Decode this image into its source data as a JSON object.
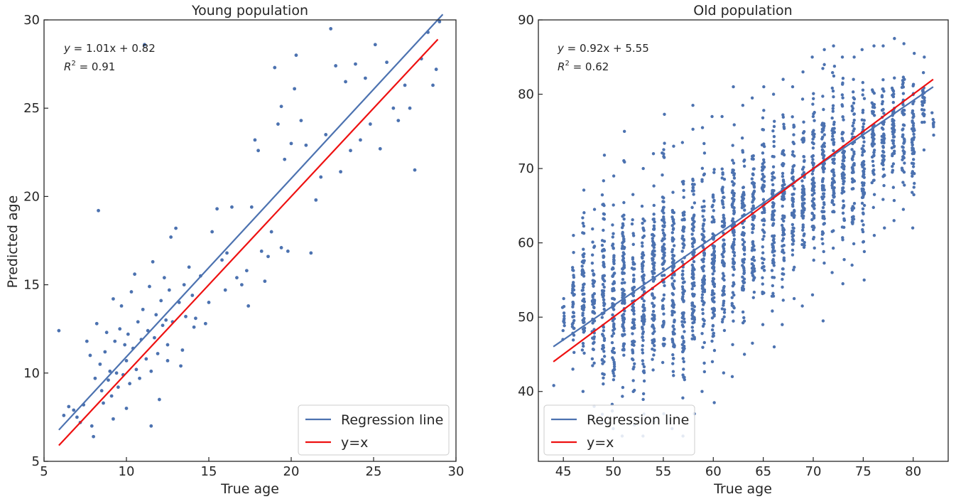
{
  "colors": {
    "scatter": "#4C72B0",
    "regression": "#4C72B0",
    "identity": "#EE1111",
    "frame": "#262626"
  },
  "ylabel": "Predicted age",
  "chart_data": [
    {
      "type": "scatter",
      "title": "Young population",
      "xlabel": "True age",
      "ylabel": "Predicted age",
      "xlim": [
        5,
        30
      ],
      "ylim": [
        5,
        30
      ],
      "xticks": [
        "5",
        "10",
        "15",
        "20",
        "25",
        "30"
      ],
      "yticks": [
        "5",
        "10",
        "15",
        "20",
        "25",
        "30"
      ],
      "annotation": {
        "eq_lhs": "y",
        "eq_rhs": " = 1.01x + 0.82",
        "r2_lhs": "R",
        "r2_sup": "2",
        "r2_rhs": " = 0.91"
      },
      "regression": {
        "slope": 1.01,
        "intercept": 0.82,
        "x": [
          5.9,
          29.2
        ]
      },
      "identity": {
        "x": [
          5.9,
          28.9
        ]
      },
      "legend": {
        "placement": "lower-right",
        "entries": [
          "Regression line",
          "y=x"
        ]
      },
      "points": [
        [
          5.9,
          12.4
        ],
        [
          6.2,
          7.6
        ],
        [
          6.5,
          8.1
        ],
        [
          6.8,
          7.9
        ],
        [
          7.0,
          7.5
        ],
        [
          7.2,
          7.2
        ],
        [
          7.4,
          8.2
        ],
        [
          7.6,
          11.8
        ],
        [
          7.8,
          11.0
        ],
        [
          7.9,
          7.0
        ],
        [
          8.0,
          6.4
        ],
        [
          8.1,
          9.7
        ],
        [
          8.2,
          12.8
        ],
        [
          8.3,
          19.2
        ],
        [
          8.4,
          10.5
        ],
        [
          8.5,
          9.0
        ],
        [
          8.6,
          8.3
        ],
        [
          8.7,
          11.2
        ],
        [
          8.8,
          12.3
        ],
        [
          8.9,
          9.6
        ],
        [
          9.0,
          10.1
        ],
        [
          9.1,
          8.7
        ],
        [
          9.2,
          14.2
        ],
        [
          9.3,
          11.8
        ],
        [
          9.4,
          10.0
        ],
        [
          9.5,
          9.2
        ],
        [
          9.6,
          12.5
        ],
        [
          9.7,
          13.8
        ],
        [
          9.8,
          9.9
        ],
        [
          9.9,
          11.6
        ],
        [
          10.0,
          10.7
        ],
        [
          10.1,
          12.2
        ],
        [
          10.2,
          9.4
        ],
        [
          10.3,
          14.6
        ],
        [
          10.4,
          11.4
        ],
        [
          10.5,
          15.6
        ],
        [
          10.6,
          10.2
        ],
        [
          10.7,
          12.9
        ],
        [
          10.8,
          9.7
        ],
        [
          10.9,
          11.9
        ],
        [
          11.0,
          13.6
        ],
        [
          11.1,
          28.6
        ],
        [
          11.2,
          10.8
        ],
        [
          11.3,
          12.4
        ],
        [
          11.4,
          14.9
        ],
        [
          11.5,
          10.1
        ],
        [
          11.6,
          16.3
        ],
        [
          11.7,
          12.0
        ],
        [
          11.8,
          13.3
        ],
        [
          11.9,
          11.1
        ],
        [
          12.0,
          8.5
        ],
        [
          12.1,
          14.1
        ],
        [
          12.2,
          12.7
        ],
        [
          12.3,
          15.4
        ],
        [
          12.4,
          13.0
        ],
        [
          12.5,
          11.6
        ],
        [
          12.6,
          14.7
        ],
        [
          12.7,
          17.7
        ],
        [
          12.8,
          12.9
        ],
        [
          13.0,
          18.2
        ],
        [
          13.2,
          14.0
        ],
        [
          13.3,
          10.4
        ],
        [
          13.5,
          15.0
        ],
        [
          13.6,
          13.2
        ],
        [
          13.8,
          16.0
        ],
        [
          14.0,
          14.4
        ],
        [
          14.2,
          13.1
        ],
        [
          14.5,
          15.5
        ],
        [
          14.8,
          12.8
        ],
        [
          15.0,
          14.0
        ],
        [
          15.2,
          18.0
        ],
        [
          15.5,
          19.3
        ],
        [
          15.8,
          16.4
        ],
        [
          16.1,
          16.8
        ],
        [
          16.4,
          19.4
        ],
        [
          16.7,
          15.4
        ],
        [
          17.0,
          15.0
        ],
        [
          17.3,
          15.8
        ],
        [
          17.6,
          19.4
        ],
        [
          17.8,
          23.2
        ],
        [
          18.0,
          22.6
        ],
        [
          18.2,
          16.9
        ],
        [
          18.4,
          15.2
        ],
        [
          18.6,
          16.6
        ],
        [
          18.8,
          18.0
        ],
        [
          19.0,
          27.3
        ],
        [
          19.2,
          24.1
        ],
        [
          19.4,
          17.1
        ],
        [
          19.6,
          22.1
        ],
        [
          19.8,
          16.9
        ],
        [
          20.0,
          23.0
        ],
        [
          20.3,
          28.0
        ],
        [
          20.6,
          24.3
        ],
        [
          20.9,
          22.9
        ],
        [
          21.2,
          16.8
        ],
        [
          21.5,
          19.8
        ],
        [
          21.8,
          21.1
        ],
        [
          22.1,
          23.5
        ],
        [
          22.4,
          29.5
        ],
        [
          22.7,
          27.4
        ],
        [
          23.0,
          21.4
        ],
        [
          23.3,
          26.5
        ],
        [
          23.6,
          22.6
        ],
        [
          23.9,
          27.5
        ],
        [
          24.2,
          23.2
        ],
        [
          24.5,
          26.7
        ],
        [
          24.8,
          24.1
        ],
        [
          25.1,
          28.6
        ],
        [
          25.4,
          22.7
        ],
        [
          25.8,
          27.6
        ],
        [
          26.2,
          25.0
        ],
        [
          26.5,
          24.3
        ],
        [
          26.9,
          26.3
        ],
        [
          27.2,
          25.0
        ],
        [
          27.5,
          21.5
        ],
        [
          27.9,
          27.8
        ],
        [
          28.3,
          29.3
        ],
        [
          28.6,
          26.3
        ],
        [
          28.8,
          27.2
        ],
        [
          29.0,
          29.9
        ],
        [
          11.5,
          7.0
        ],
        [
          10.0,
          8.0
        ],
        [
          9.2,
          7.4
        ],
        [
          12.5,
          10.7
        ],
        [
          13.4,
          11.3
        ],
        [
          14.1,
          12.6
        ],
        [
          16.0,
          14.7
        ],
        [
          17.4,
          13.8
        ],
        [
          20.2,
          26.1
        ],
        [
          19.4,
          25.1
        ]
      ]
    },
    {
      "type": "scatter",
      "title": "Old population",
      "xlabel": "True age",
      "xlim": [
        42.5,
        83.5
      ],
      "ylim": [
        30.6,
        90
      ],
      "xticks": [
        "45",
        "50",
        "55",
        "60",
        "65",
        "70",
        "75",
        "80"
      ],
      "yticks": [
        "40",
        "50",
        "60",
        "70",
        "80",
        "90"
      ],
      "annotation": {
        "eq_lhs": "y",
        "eq_rhs": " = 0.92x + 5.55",
        "r2_lhs": "R",
        "r2_sup": "2",
        "r2_rhs": " = 0.62"
      },
      "regression": {
        "slope": 0.92,
        "intercept": 5.55,
        "x": [
          44,
          82
        ]
      },
      "identity": {
        "x": [
          44,
          82
        ]
      },
      "legend": {
        "placement": "lower-left",
        "entries": [
          "Regression line",
          "y=x"
        ]
      },
      "columns": [
        {
          "x": 44,
          "min": 40.8,
          "max": 40.8
        },
        {
          "x": 45,
          "min": 47.0,
          "max": 52.5
        },
        {
          "x": 46,
          "min": 43.0,
          "max": 61.0
        },
        {
          "x": 47,
          "min": 40.0,
          "max": 67.1
        },
        {
          "x": 48,
          "min": 38.0,
          "max": 64.5
        },
        {
          "x": 49,
          "min": 36.0,
          "max": 71.8
        },
        {
          "x": 50,
          "min": 35.0,
          "max": 69.0
        },
        {
          "x": 51,
          "min": 34.0,
          "max": 75.0
        },
        {
          "x": 52,
          "min": 35.5,
          "max": 66.5
        },
        {
          "x": 53,
          "min": 34.0,
          "max": 70.0
        },
        {
          "x": 54,
          "min": 36.0,
          "max": 72.0
        },
        {
          "x": 55,
          "min": 37.0,
          "max": 77.3
        },
        {
          "x": 56,
          "min": 35.0,
          "max": 73.0
        },
        {
          "x": 57,
          "min": 34.0,
          "max": 73.5
        },
        {
          "x": 58,
          "min": 37.0,
          "max": 78.5
        },
        {
          "x": 59,
          "min": 40.0,
          "max": 75.5
        },
        {
          "x": 60,
          "min": 38.5,
          "max": 77.0
        },
        {
          "x": 61,
          "min": 42.5,
          "max": 77.0
        },
        {
          "x": 62,
          "min": 42.0,
          "max": 81.0
        },
        {
          "x": 63,
          "min": 45.0,
          "max": 78.5
        },
        {
          "x": 64,
          "min": 46.5,
          "max": 79.5
        },
        {
          "x": 65,
          "min": 49.0,
          "max": 81.0
        },
        {
          "x": 66,
          "min": 46.0,
          "max": 80.0
        },
        {
          "x": 67,
          "min": 49.0,
          "max": 82.0
        },
        {
          "x": 68,
          "min": 52.5,
          "max": 81.0
        },
        {
          "x": 69,
          "min": 51.5,
          "max": 83.0
        },
        {
          "x": 70,
          "min": 53.0,
          "max": 85.0
        },
        {
          "x": 71,
          "min": 49.5,
          "max": 86.0
        },
        {
          "x": 72,
          "min": 56.0,
          "max": 86.5
        },
        {
          "x": 73,
          "min": 54.5,
          "max": 85.0
        },
        {
          "x": 74,
          "min": 57.0,
          "max": 85.0
        },
        {
          "x": 75,
          "min": 55.0,
          "max": 86.0
        },
        {
          "x": 76,
          "min": 61.0,
          "max": 86.5
        },
        {
          "x": 77,
          "min": 62.0,
          "max": 86.5
        },
        {
          "x": 78,
          "min": 63.0,
          "max": 87.5
        },
        {
          "x": 79,
          "min": 64.5,
          "max": 86.8
        },
        {
          "x": 80,
          "min": 62.0,
          "max": 85.5
        },
        {
          "x": 81,
          "min": 72.5,
          "max": 85.0
        },
        {
          "x": 82,
          "min": 74.5,
          "max": 77.5
        }
      ]
    }
  ]
}
